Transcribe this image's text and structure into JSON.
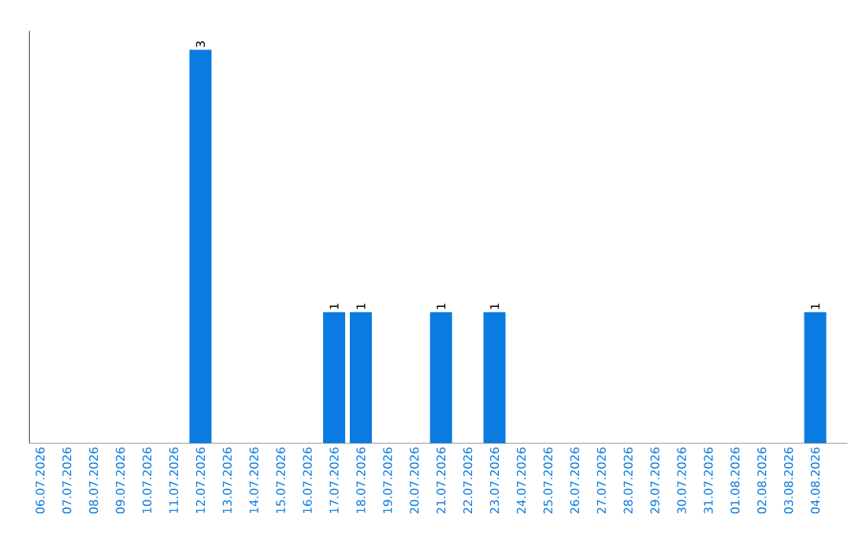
{
  "chart_data": {
    "type": "bar",
    "categories": [
      "06.07.2026",
      "07.07.2026",
      "08.07.2026",
      "09.07.2026",
      "10.07.2026",
      "11.07.2026",
      "12.07.2026",
      "13.07.2026",
      "14.07.2026",
      "15.07.2026",
      "16.07.2026",
      "17.07.2026",
      "18.07.2026",
      "19.07.2026",
      "20.07.2026",
      "21.07.2026",
      "22.07.2026",
      "23.07.2026",
      "24.07.2026",
      "25.07.2026",
      "26.07.2026",
      "27.07.2026",
      "28.07.2026",
      "29.07.2026",
      "30.07.2026",
      "31.07.2026",
      "01.08.2026",
      "02.08.2026",
      "03.08.2026",
      "04.08.2026"
    ],
    "values": [
      0,
      0,
      0,
      0,
      0,
      0,
      3,
      0,
      0,
      0,
      0,
      1,
      1,
      0,
      0,
      1,
      0,
      1,
      0,
      0,
      0,
      0,
      0,
      0,
      0,
      0,
      0,
      0,
      0,
      1
    ],
    "value_labels": [
      null,
      null,
      null,
      null,
      null,
      null,
      "3",
      null,
      null,
      null,
      null,
      "1",
      "1",
      null,
      null,
      "1",
      null,
      "1",
      null,
      null,
      null,
      null,
      null,
      null,
      null,
      null,
      null,
      null,
      null,
      "1"
    ],
    "color": "#0a7be0"
  }
}
